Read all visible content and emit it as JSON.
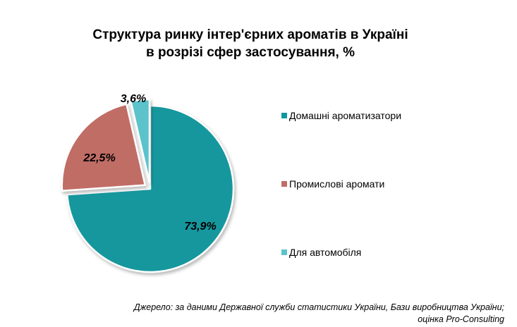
{
  "chart_data": {
    "type": "pie",
    "title": [
      "Структура ринку інтер'єрних ароматів в Україні",
      "в розрізі сфер застосування, %"
    ],
    "unit": "%",
    "slices": [
      {
        "name": "Домашні ароматизатори",
        "value": 73.9,
        "label": "73,9%",
        "color": "#12979E"
      },
      {
        "name": "Промислові аромати",
        "value": 22.5,
        "label": "22,5%",
        "color": "#C06D66"
      },
      {
        "name": "Для автомобіля",
        "value": 3.6,
        "label": "3,6%",
        "color": "#5CC3CB"
      }
    ],
    "legend_position": "right"
  },
  "source_note": [
    "Джерело: за даними Державної служби статистики України, Бази виробництва України;",
    "оцінка Pro-Consulting"
  ]
}
